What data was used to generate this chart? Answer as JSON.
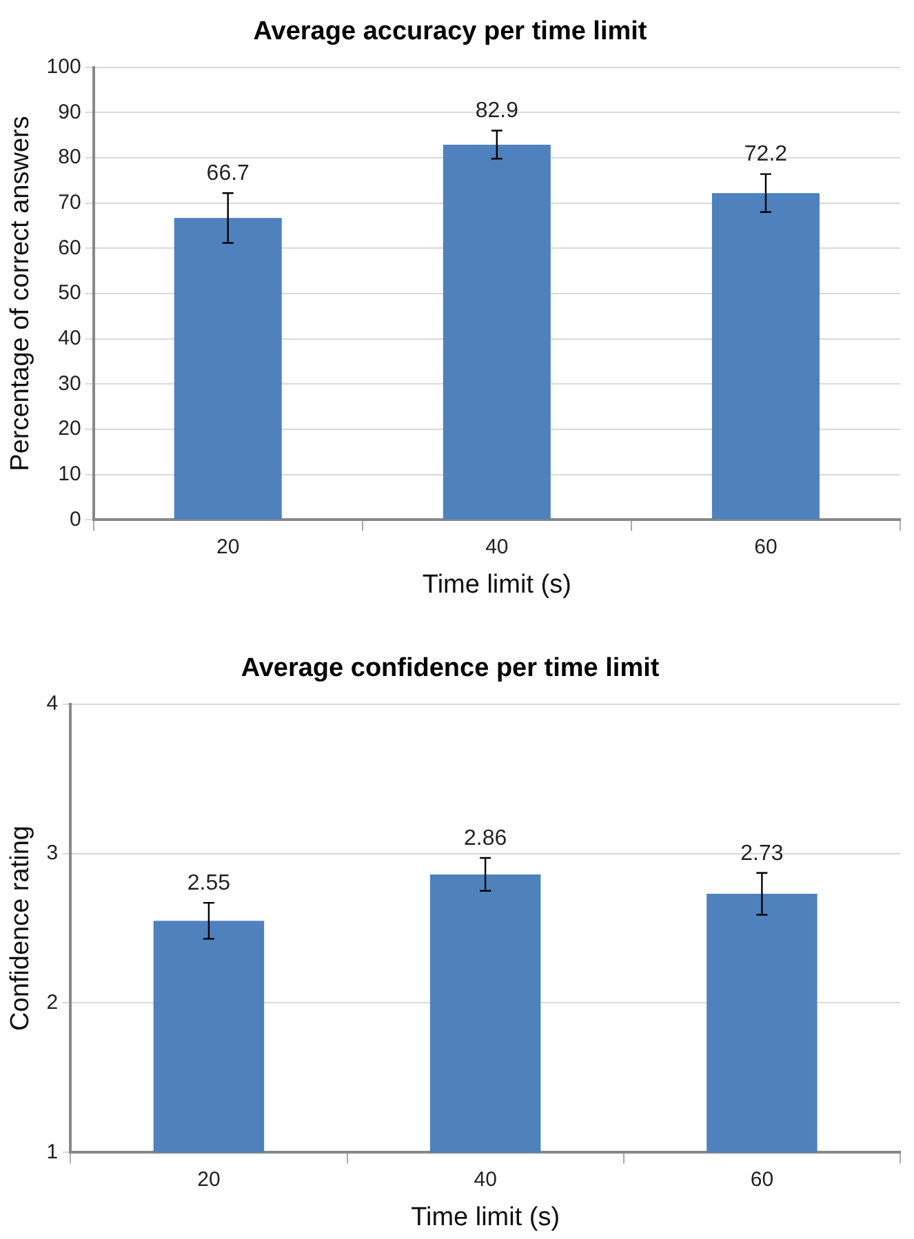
{
  "chart_data": [
    {
      "type": "bar",
      "title": "Average accuracy per time limit",
      "xlabel": "Time limit (s)",
      "ylabel": "Percentage of correct answers",
      "categories": [
        "20",
        "40",
        "60"
      ],
      "values": [
        66.7,
        82.9,
        72.2
      ],
      "errors": [
        5.5,
        3.1,
        4.2
      ],
      "color": "#4f81bd",
      "ylim": [
        0,
        100
      ],
      "yticks": [
        0,
        10,
        20,
        30,
        40,
        50,
        60,
        70,
        80,
        90,
        100
      ],
      "grid": "y",
      "legend": false,
      "data_labels": true
    },
    {
      "type": "bar",
      "title": "Average confidence per time limit",
      "xlabel": "Time limit (s)",
      "ylabel": "Confidence rating",
      "categories": [
        "20",
        "40",
        "60"
      ],
      "values": [
        2.55,
        2.86,
        2.73
      ],
      "errors": [
        0.12,
        0.11,
        0.14
      ],
      "color": "#4f81bd",
      "ylim": [
        1,
        4
      ],
      "yticks": [
        1,
        2,
        3,
        4
      ],
      "grid": "y",
      "legend": false,
      "data_labels": true
    }
  ]
}
